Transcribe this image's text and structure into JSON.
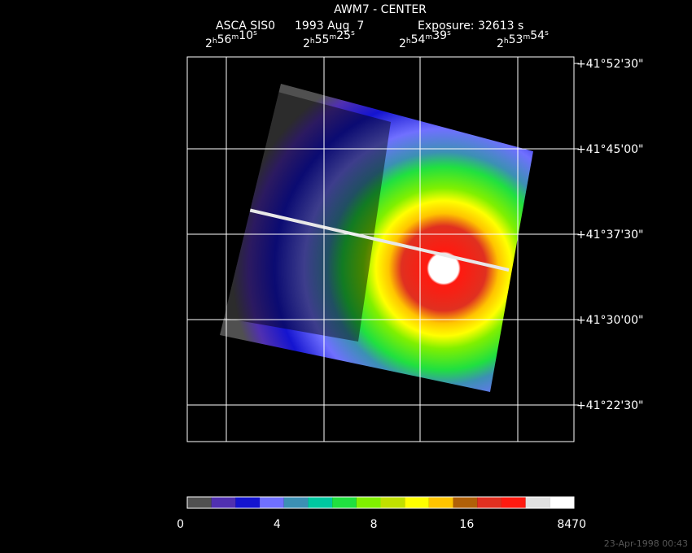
{
  "header": {
    "title": "AWM7 - CENTER",
    "instrument": "ASCA SIS0",
    "date": "1993 Aug  7",
    "exposure": "Exposure: 32613 s"
  },
  "ra_units": [
    "h",
    "m",
    "s"
  ],
  "ra_labels": [
    [
      "2",
      "56",
      "10"
    ],
    [
      "2",
      "55",
      "25"
    ],
    [
      "2",
      "54",
      "39"
    ],
    [
      "2",
      "53",
      "54"
    ]
  ],
  "dec_labels": [
    "+41°52'30\"",
    "+41°45'00\"",
    "+41°37'30\"",
    "+41°30'00\"",
    "+41°22'30\""
  ],
  "colorbar": {
    "colors": [
      "#505050",
      "#5030b0",
      "#1414d0",
      "#7070ff",
      "#3c90b4",
      "#00c8a0",
      "#20e040",
      "#80f000",
      "#c0e000",
      "#ffff00",
      "#ffc400",
      "#b06008",
      "#e03020",
      "#ff1a10",
      "#e0e0e0",
      "#ffffff"
    ],
    "labels": [
      "0",
      "4",
      "8",
      "16",
      "8470"
    ]
  },
  "timestamp": "23-Apr-1998 00:43"
}
